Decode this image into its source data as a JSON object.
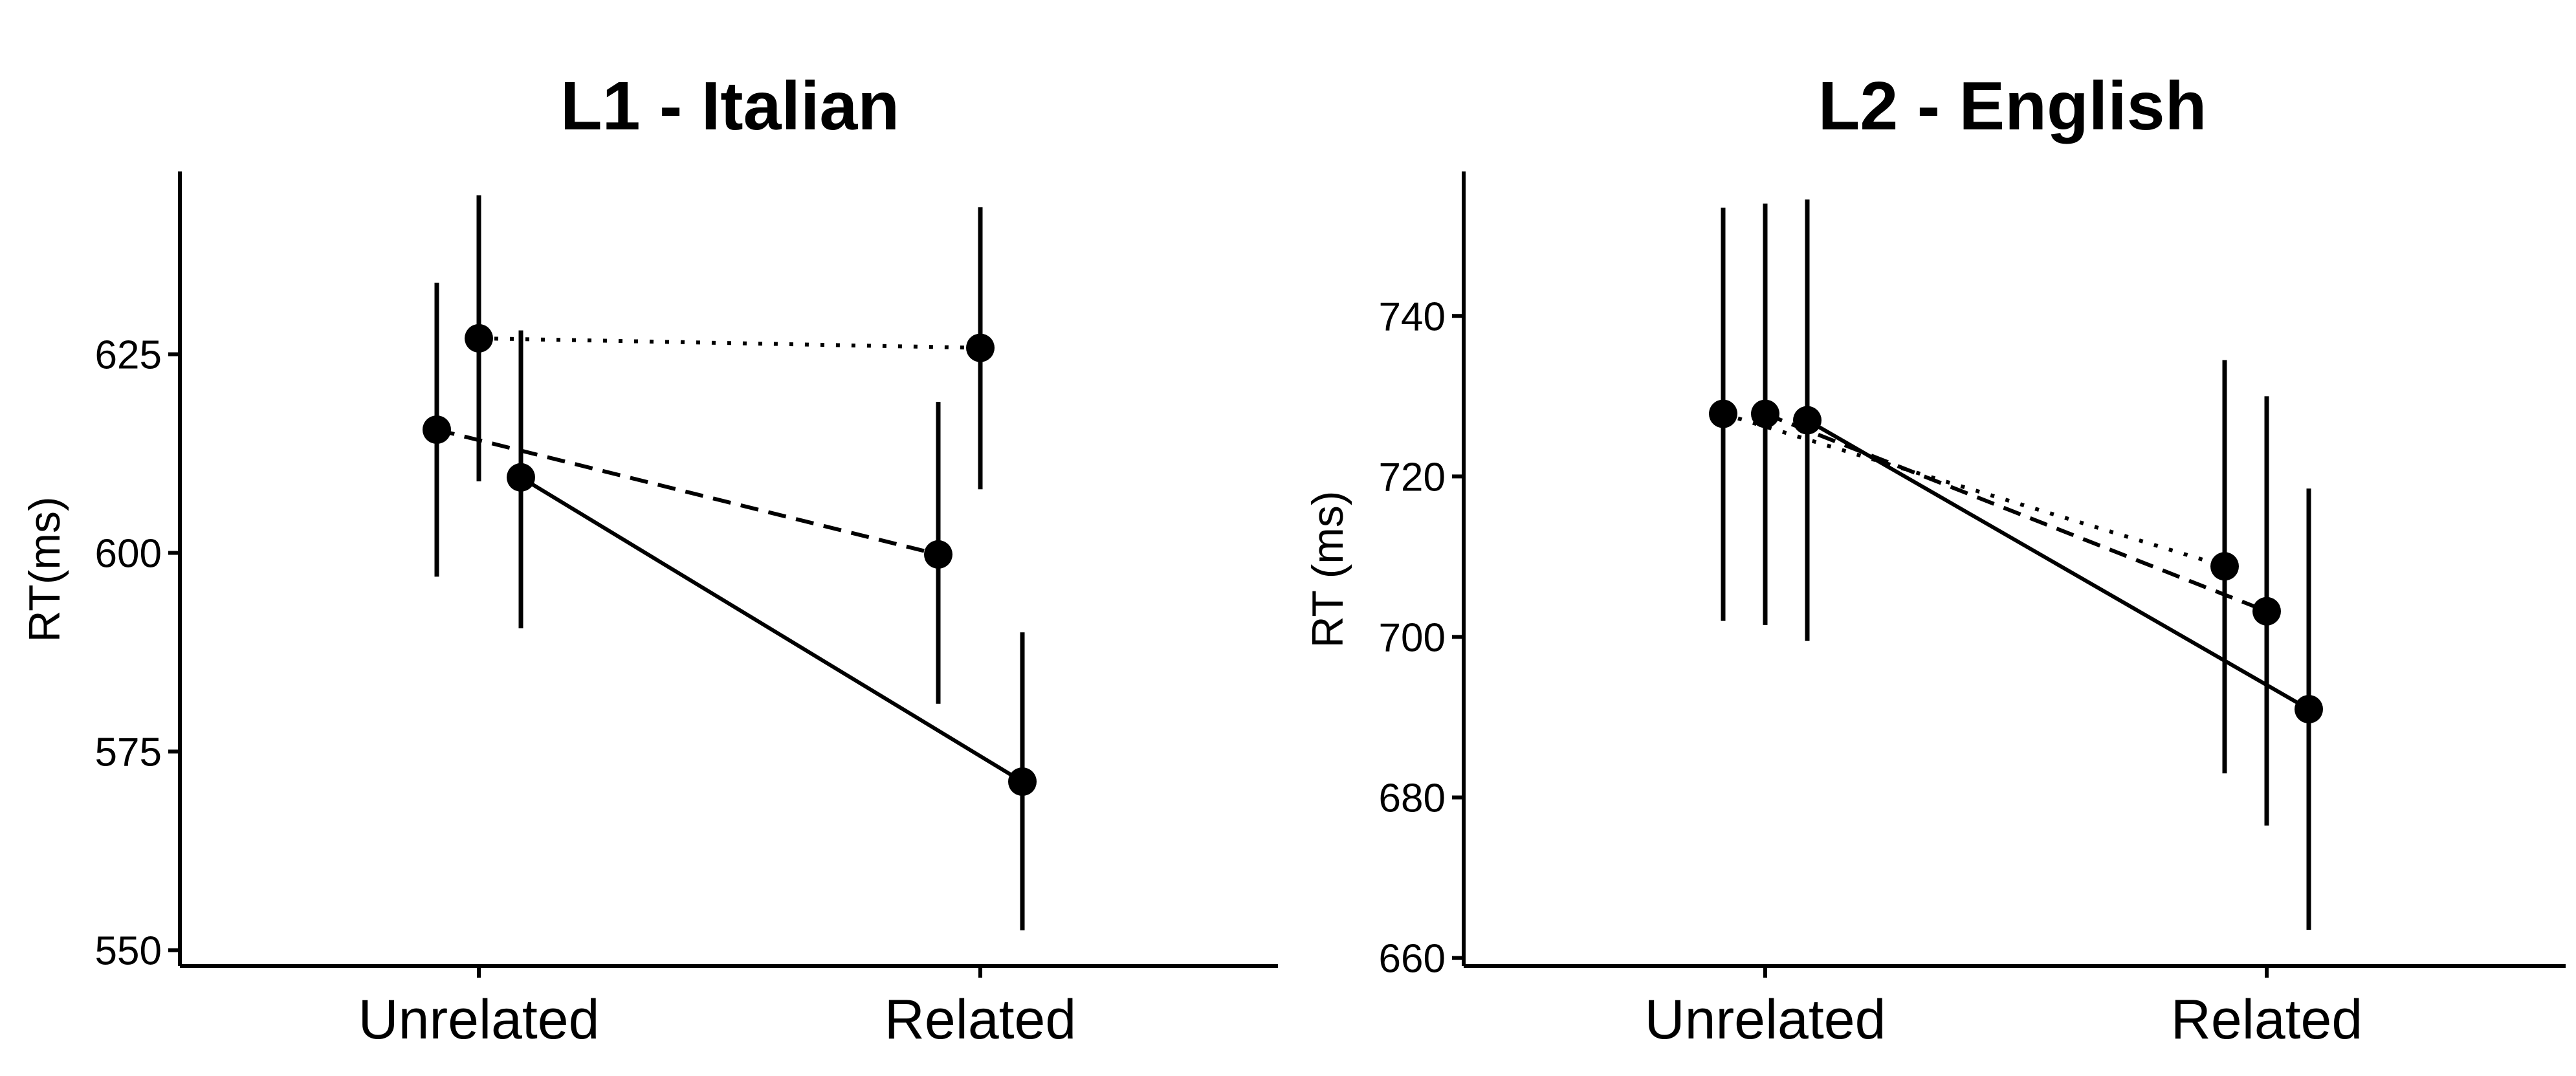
{
  "chart_data": [
    {
      "type": "line",
      "title": "L1 - Italian",
      "ylabel": "RT(ms)",
      "xlabel": "",
      "categories": [
        "Unrelated",
        "Related"
      ],
      "ylim": [
        548,
        648
      ],
      "yticks": [
        550,
        575,
        600,
        625
      ],
      "grid": false,
      "series": [
        {
          "line_style": "dashed",
          "values": [
            615.5,
            599.8
          ],
          "ci_low": [
            597,
            581
          ],
          "ci_high": [
            634,
            619
          ]
        },
        {
          "line_style": "dotted",
          "values": [
            627,
            625.8
          ],
          "ci_low": [
            609,
            608
          ],
          "ci_high": [
            645,
            643.5
          ]
        },
        {
          "line_style": "solid",
          "values": [
            609.5,
            571.2
          ],
          "ci_low": [
            590.5,
            552.5
          ],
          "ci_high": [
            628,
            590
          ]
        }
      ]
    },
    {
      "type": "line",
      "title": "L2 - English",
      "ylabel": "RT (ms)",
      "xlabel": "",
      "categories": [
        "Unrelated",
        "Related"
      ],
      "ylim": [
        659,
        758
      ],
      "yticks": [
        660,
        680,
        700,
        720,
        740
      ],
      "grid": false,
      "series": [
        {
          "line_style": "dotted",
          "values": [
            727.8,
            708.8
          ],
          "ci_low": [
            702,
            683
          ],
          "ci_high": [
            753.5,
            734.5
          ]
        },
        {
          "line_style": "dashed",
          "values": [
            727.8,
            703.2
          ],
          "ci_low": [
            701.5,
            676.5
          ],
          "ci_high": [
            754,
            730
          ]
        },
        {
          "line_style": "solid",
          "values": [
            727,
            691
          ],
          "ci_low": [
            699.5,
            663.5
          ],
          "ci_high": [
            754.5,
            718.5
          ]
        }
      ]
    }
  ]
}
